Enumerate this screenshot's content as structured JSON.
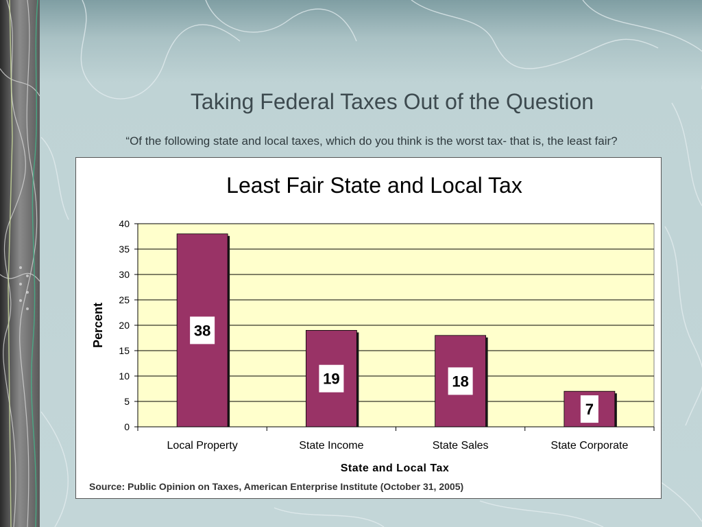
{
  "slide": {
    "title": "Taking Federal Taxes Out of the Question",
    "subtitle": "“Of the following state and local taxes, which do you think is the worst tax- that is, the least fair?",
    "source": "Source: Public Opinion on Taxes, American Enterprise Institute (October 31, 2005)"
  },
  "colors": {
    "bar": "#993366",
    "plot_background": "#ffffcc",
    "gridline": "#000000"
  },
  "chart_data": {
    "type": "bar",
    "title": "Least Fair State and Local Tax",
    "xlabel": "State and Local Tax",
    "ylabel": "Percent",
    "categories": [
      "Local Property",
      "State Income",
      "State Sales",
      "State Corporate"
    ],
    "values": [
      38,
      19,
      18,
      7
    ],
    "data_labels": [
      "38",
      "19",
      "18",
      "7"
    ],
    "ylim": [
      0,
      40
    ],
    "yticks": [
      0,
      5,
      10,
      15,
      20,
      25,
      30,
      35,
      40
    ],
    "grid": true,
    "legend": "none"
  }
}
